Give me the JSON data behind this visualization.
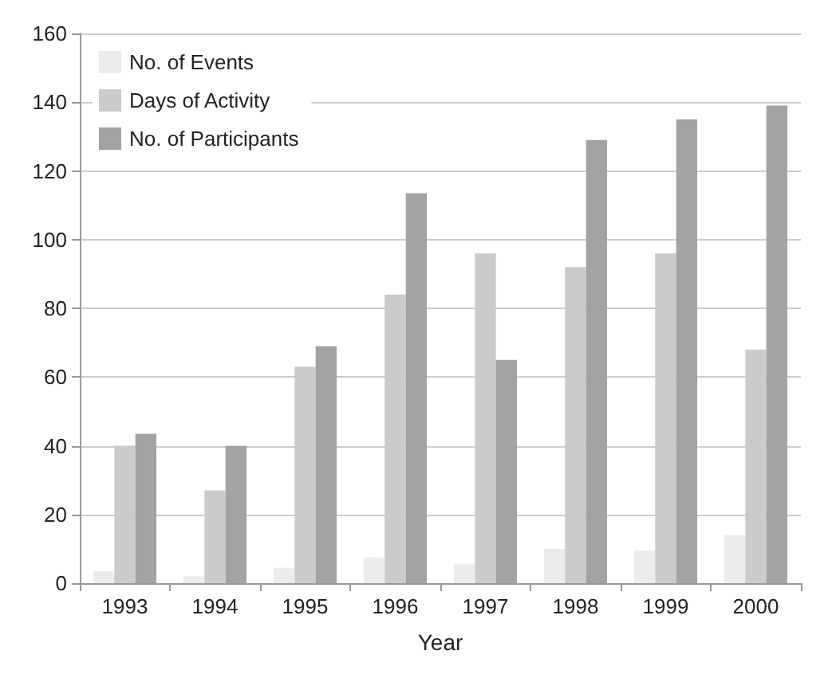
{
  "chart_data": {
    "type": "bar",
    "xlabel": "Year",
    "categories": [
      "1993",
      "1994",
      "1995",
      "1996",
      "1997",
      "1998",
      "1999",
      "2000"
    ],
    "series": [
      {
        "name": "No. of Events",
        "color": "#ececec",
        "values": [
          3.5,
          2,
          4.5,
          7.5,
          5.5,
          10,
          9.5,
          14
        ]
      },
      {
        "name": "Days of Activity",
        "color": "#cbcbcb",
        "values": [
          40,
          27,
          63,
          84,
          96,
          92,
          96,
          68
        ]
      },
      {
        "name": "No. of Participants",
        "color": "#a3a3a3",
        "values": [
          43.5,
          40,
          69,
          113.5,
          65,
          129,
          135,
          139
        ]
      }
    ],
    "ylim": [
      0,
      160
    ],
    "yticks": [
      0,
      20,
      40,
      60,
      80,
      100,
      120,
      140,
      160
    ],
    "grid": "y",
    "legend": "top left"
  }
}
